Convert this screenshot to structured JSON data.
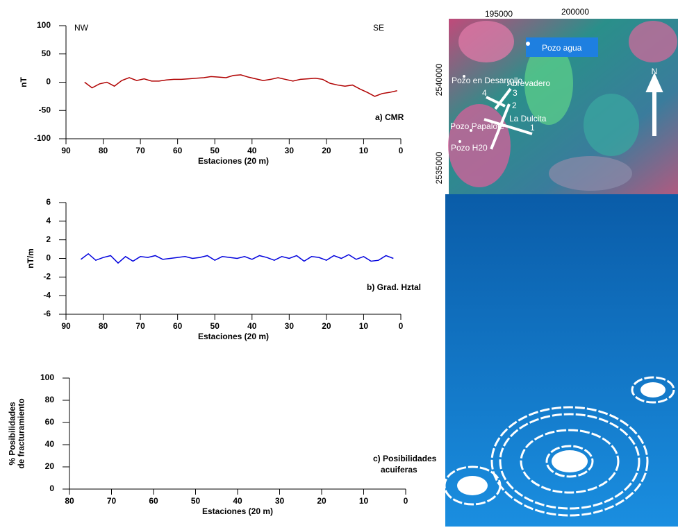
{
  "chart_data": [
    {
      "type": "line",
      "left_label": "NW",
      "right_label": "SE",
      "caption": [
        "a) CMR"
      ],
      "y_label": [
        "nT"
      ],
      "x_label": "Estaciones (20 m)",
      "color": "#b00000",
      "x": [
        85,
        83,
        81,
        79,
        77,
        75,
        73,
        71,
        69,
        67,
        65,
        63,
        61,
        59,
        57,
        55,
        53,
        51,
        49,
        47,
        45,
        43,
        41,
        39,
        37,
        35,
        33,
        31,
        29,
        27,
        25,
        23,
        21,
        19,
        17,
        15,
        13,
        11,
        9,
        7,
        5,
        3,
        1
      ],
      "values": [
        0,
        -10,
        -3,
        0,
        -7,
        3,
        8,
        3,
        6,
        2,
        2,
        4,
        5,
        5,
        6,
        7,
        8,
        10,
        9,
        8,
        12,
        13,
        9,
        6,
        3,
        5,
        8,
        5,
        2,
        5,
        6,
        7,
        5,
        -2,
        -5,
        -7,
        -5,
        -12,
        -18,
        -25,
        -20,
        -18,
        -15
      ],
      "xlim": [
        90,
        0
      ],
      "xticks": [
        90,
        80,
        70,
        60,
        50,
        40,
        30,
        20,
        10,
        0
      ],
      "ylim": [
        -100,
        100
      ],
      "yticks": [
        -100,
        -50,
        0,
        50,
        100
      ]
    },
    {
      "type": "line",
      "caption": [
        "b) Grad. Hztal"
      ],
      "y_label": [
        "nT/m"
      ],
      "x_label": "Estaciones (20 m)",
      "color": "#0000dd",
      "x": [
        86,
        84,
        82,
        80,
        78,
        76,
        74,
        72,
        70,
        68,
        66,
        64,
        62,
        60,
        58,
        56,
        54,
        52,
        50,
        48,
        46,
        44,
        42,
        40,
        38,
        36,
        34,
        32,
        30,
        28,
        26,
        24,
        22,
        20,
        18,
        16,
        14,
        12,
        10,
        8,
        6,
        4,
        2
      ],
      "values": [
        -0.1,
        0.5,
        -0.2,
        0.1,
        0.3,
        -0.5,
        0.2,
        -0.3,
        0.2,
        0.1,
        0.3,
        -0.1,
        0.0,
        0.1,
        0.2,
        0.0,
        0.1,
        0.3,
        -0.2,
        0.2,
        0.1,
        0.0,
        0.2,
        -0.1,
        0.3,
        0.1,
        -0.2,
        0.2,
        0.0,
        0.3,
        -0.3,
        0.2,
        0.1,
        -0.2,
        0.3,
        0.0,
        0.4,
        -0.1,
        0.2,
        -0.3,
        -0.2,
        0.3,
        0.0
      ],
      "xlim": [
        90,
        0
      ],
      "xticks": [
        90,
        80,
        70,
        60,
        50,
        40,
        30,
        20,
        10,
        0
      ],
      "ylim": [
        -6,
        6
      ],
      "yticks": [
        -6,
        -4,
        -2,
        0,
        2,
        4,
        6
      ]
    },
    {
      "type": "line",
      "caption": [
        "c) Posibilidades",
        "acuiferas"
      ],
      "y_label": [
        "% Posibilidades",
        "de fracturamiento"
      ],
      "x_label": "Estaciones (20 m)",
      "color": "#000000",
      "x": [],
      "values": [],
      "xlim": [
        80,
        0
      ],
      "xticks": [
        80,
        70,
        60,
        50,
        40,
        30,
        20,
        10,
        0
      ],
      "ylim": [
        0,
        100
      ],
      "yticks": [
        0,
        20,
        40,
        60,
        80,
        100
      ]
    }
  ],
  "map": {
    "easting_labels": [
      "195000",
      "200000"
    ],
    "northing_labels": [
      "2540000",
      "2535000"
    ],
    "pozo_agua": "Pozo agua",
    "north": "N",
    "wells": [
      "Pozo en Desarrollo",
      "Abrevadero",
      "Pozo Papalote",
      "Pozo H20"
    ],
    "site": "La Dulcita",
    "profiles": [
      "1",
      "2",
      "3",
      "4"
    ]
  }
}
